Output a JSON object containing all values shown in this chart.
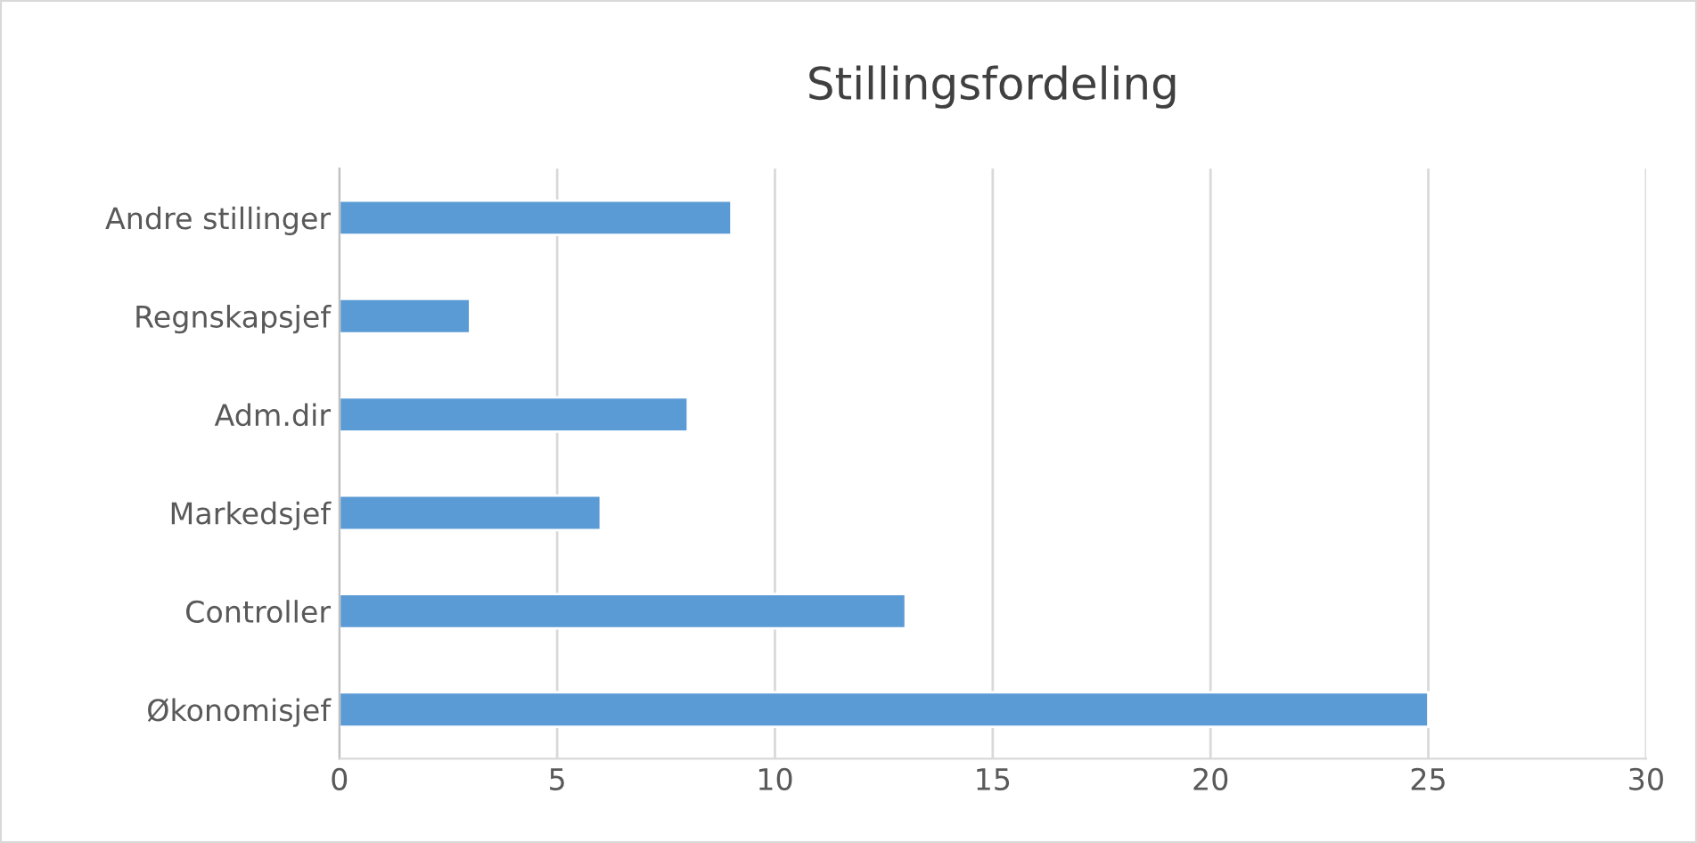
{
  "chart_data": {
    "type": "bar",
    "orientation": "horizontal",
    "title": "Stillingsfordeling",
    "categories": [
      "Andre stillinger",
      "Regnskapsjef",
      "Adm.dir",
      "Markedsjef",
      "Controller",
      "Økonomisjef"
    ],
    "values": [
      9,
      3,
      8,
      6,
      13,
      25
    ],
    "color": "#5b9bd5",
    "xlim": [
      0,
      30
    ],
    "xticks": [
      0,
      5,
      10,
      15,
      20,
      25,
      30
    ],
    "grid": "x",
    "legend": false
  }
}
